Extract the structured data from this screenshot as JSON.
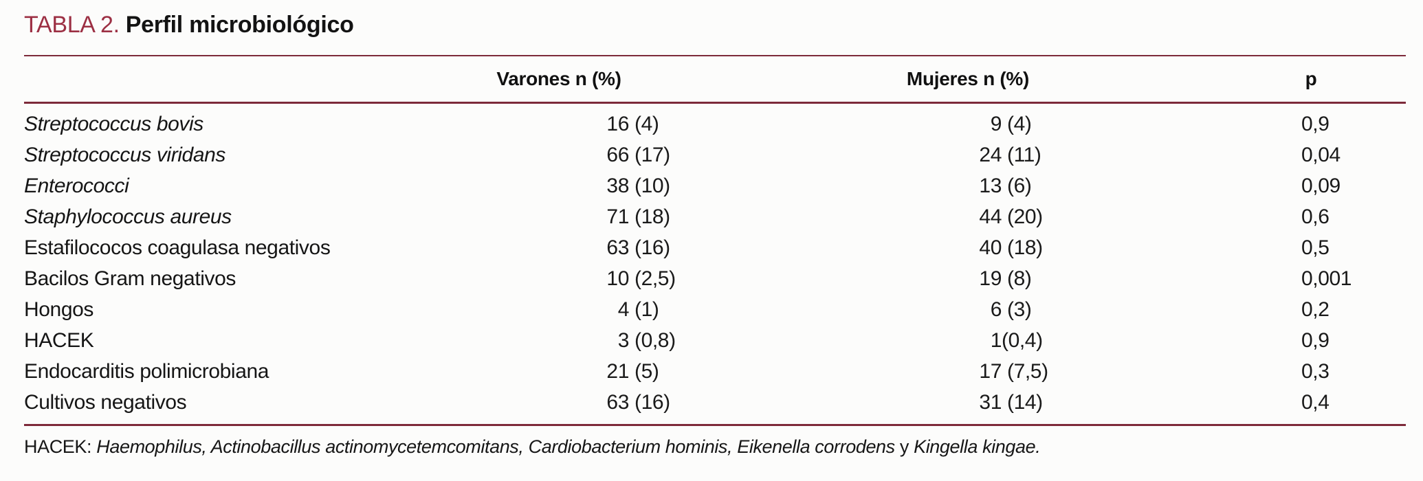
{
  "title": {
    "number": "TABLA 2.",
    "caption": "Perfil microbiológico"
  },
  "accent_colors": {
    "title_red": "#9c2f43",
    "rule_maroon": "#7d2a3a"
  },
  "table": {
    "headers": {
      "varones": "Varones n (%)",
      "mujeres": "Mujeres n (%)",
      "p": "p"
    },
    "rows": [
      {
        "organism": "Streptococcus bovis",
        "italic": true,
        "varones": "16 (4)",
        "mujeres": "9 (4)",
        "p": "0,9"
      },
      {
        "organism": "Streptococcus viridans",
        "italic": true,
        "varones": "66 (17)",
        "mujeres": "24 (11)",
        "p": "0,04"
      },
      {
        "organism": "Enterococci",
        "italic": true,
        "varones": "38 (10)",
        "mujeres": "13 (6)",
        "p": "0,09"
      },
      {
        "organism": "Staphylococcus aureus",
        "italic": true,
        "varones": "71 (18)",
        "mujeres": "44 (20)",
        "p": "0,6"
      },
      {
        "organism": "Estafilococos coagulasa negativos",
        "italic": false,
        "varones": "63 (16)",
        "mujeres": "40 (18)",
        "p": "0,5"
      },
      {
        "organism": "Bacilos Gram negativos",
        "italic": false,
        "varones": "10 (2,5)",
        "mujeres": "19 (8)",
        "p": "0,001"
      },
      {
        "organism": "Hongos",
        "italic": false,
        "varones": "4 (1)",
        "mujeres": "6 (3)",
        "p": "0,2"
      },
      {
        "organism": "HACEK",
        "italic": false,
        "varones": "3 (0,8)",
        "mujeres": "1(0,4)",
        "p": "0,9"
      },
      {
        "organism": "Endocarditis polimicrobiana",
        "italic": false,
        "varones": "21 (5)",
        "mujeres": "17 (7,5)",
        "p": "0,3"
      },
      {
        "organism": "Cultivos negativos",
        "italic": false,
        "varones": "63 (16)",
        "mujeres": "31 (14)",
        "p": "0,4"
      }
    ]
  },
  "footnote": {
    "segments": [
      {
        "text": "HACEK: ",
        "italic": false
      },
      {
        "text": "Haemophilus, Actinobacillus actinomycetemcomitans, Cardiobacterium hominis, Eikenella corrodens",
        "italic": true
      },
      {
        "text": " y ",
        "italic": false
      },
      {
        "text": "Kingella kingae.",
        "italic": true
      }
    ]
  }
}
